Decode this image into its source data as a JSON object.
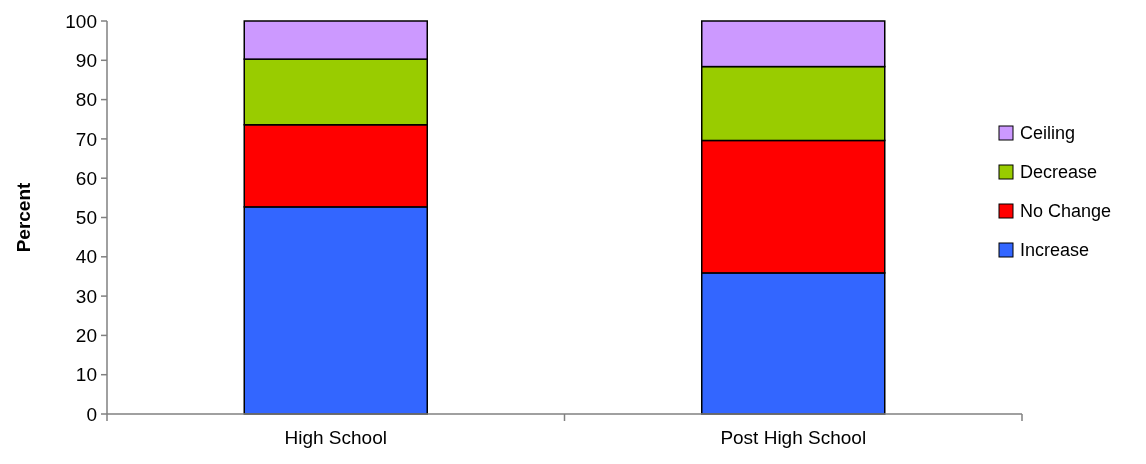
{
  "chart_data": {
    "type": "bar",
    "stacked": true,
    "ylabel": "Percent",
    "categories": [
      "High School",
      "Post High School"
    ],
    "series": [
      {
        "name": "Increase",
        "color": "#3366ff",
        "values": [
          52.7,
          35.9
        ]
      },
      {
        "name": "No Change",
        "color": "#ff0000",
        "values": [
          20.9,
          33.7
        ]
      },
      {
        "name": "Decrease",
        "color": "#99cc00",
        "values": [
          16.7,
          18.8
        ]
      },
      {
        "name": "Ceiling",
        "color": "#cc99ff",
        "values": [
          9.7,
          11.6
        ]
      }
    ],
    "ylim": [
      0,
      100
    ],
    "yticks": [
      0,
      10,
      20,
      30,
      40,
      50,
      60,
      70,
      80,
      90,
      100
    ],
    "legend": "right",
    "grid": false
  }
}
